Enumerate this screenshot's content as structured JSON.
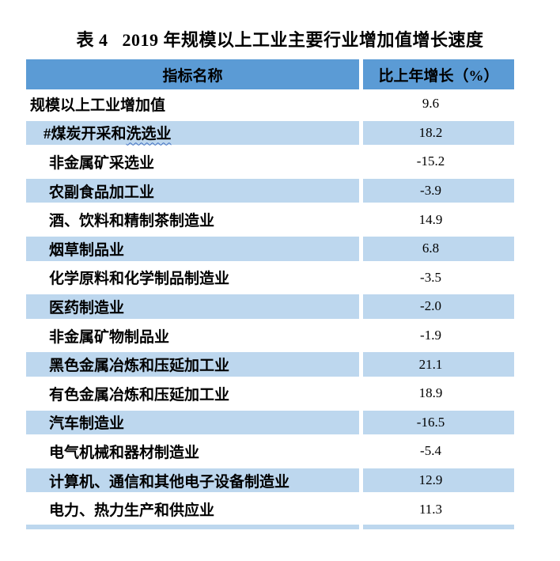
{
  "title": {
    "prefix": "表 4",
    "text": "2019 年规模以上工业主要行业增加值增长速度"
  },
  "colors": {
    "header_bg": "#5B9BD5",
    "row_alt_bg": "#BDD7EE",
    "text": "#000000",
    "squiggle": "#3E6DBF"
  },
  "table": {
    "headers": [
      {
        "label": "指标名称"
      },
      {
        "label": "比上年增长（%）"
      }
    ],
    "rows": [
      {
        "label": "规模以上工业增加值",
        "value": "9.6",
        "indent": 0,
        "shaded": false
      },
      {
        "label": "#煤炭开采和",
        "wavy": "洗选业",
        "value": "18.2",
        "indent": 1,
        "shaded": true
      },
      {
        "label": "非金属矿采选业",
        "value": "-15.2",
        "indent": 2,
        "shaded": false
      },
      {
        "label": "农副食品加工业",
        "value": "-3.9",
        "indent": 2,
        "shaded": true
      },
      {
        "label": "酒、饮料和精制茶制造业",
        "value": "14.9",
        "indent": 2,
        "shaded": false
      },
      {
        "label": "烟草制品业",
        "value": "6.8",
        "indent": 2,
        "shaded": true
      },
      {
        "label": "化学原料和化学制品制造业",
        "value": "-3.5",
        "indent": 2,
        "shaded": false
      },
      {
        "label": "医药制造业",
        "value": "-2.0",
        "indent": 2,
        "shaded": true
      },
      {
        "label": "非金属矿物制品业",
        "value": "-1.9",
        "indent": 2,
        "shaded": false
      },
      {
        "label": "黑色金属冶炼和压延加工业",
        "value": "21.1",
        "indent": 2,
        "shaded": true
      },
      {
        "label": "有色金属冶炼和压延加工业",
        "value": "18.9",
        "indent": 2,
        "shaded": false
      },
      {
        "label": "汽车制造业",
        "value": "-16.5",
        "indent": 2,
        "shaded": true
      },
      {
        "label": "电气机械和器材制造业",
        "value": "-5.4",
        "indent": 2,
        "shaded": false
      },
      {
        "label": "计算机、通信和其他电子设备制造业",
        "value": "12.9",
        "indent": 2,
        "shaded": true
      },
      {
        "label": "电力、热力生产和供应业",
        "value": "11.3",
        "indent": 2,
        "shaded": false
      }
    ],
    "partial_next_row_visible": true
  }
}
